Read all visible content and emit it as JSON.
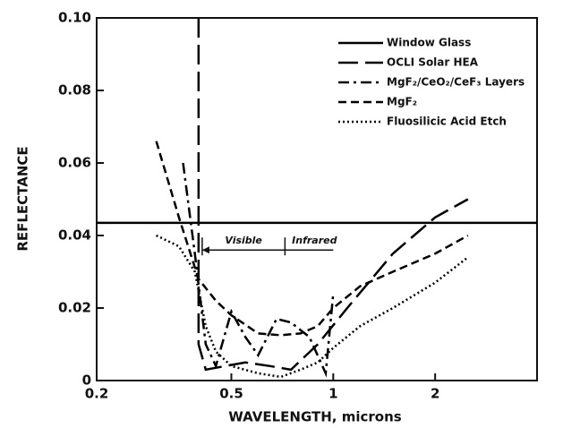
{
  "chart_data": {
    "type": "line",
    "xlabel": "WAVELENGTH, microns",
    "ylabel": "REFLECTANCE",
    "xscale": "log",
    "xlim": [
      0.2,
      4
    ],
    "xticks": [
      0.2,
      0.5,
      1,
      2
    ],
    "ylim": [
      0,
      0.1
    ],
    "yticks": [
      0,
      0.02,
      0.04,
      0.06,
      0.08,
      {
        "value": 0.1,
        "label": "0.10"
      }
    ],
    "legend": "upper right",
    "annotations": [
      "Visible",
      "Infrared"
    ],
    "series": [
      {
        "name": "Window Glass",
        "color": "#000000",
        "dash": "solid",
        "x": [
          0.2,
          4
        ],
        "values": [
          0.0435,
          0.0435
        ]
      },
      {
        "name": "OCLI Solar HEA",
        "color": "#000000",
        "dash": "long",
        "x": [
          0.4,
          0.4,
          0.42,
          0.48,
          0.55,
          0.65,
          0.75,
          0.9,
          1.1,
          1.5,
          2,
          2.5
        ],
        "values": [
          0.1,
          0.01,
          0.003,
          0.004,
          0.005,
          0.004,
          0.003,
          0.01,
          0.02,
          0.035,
          0.045,
          0.05
        ]
      },
      {
        "name": "MgF₂/CeO₂/CeF₃ Layers",
        "color": "#000000",
        "dash": "dashdot",
        "x": [
          0.36,
          0.39,
          0.42,
          0.45,
          0.5,
          0.55,
          0.6,
          0.68,
          0.75,
          0.85,
          0.95,
          1.0
        ],
        "values": [
          0.06,
          0.035,
          0.01,
          0.004,
          0.019,
          0.012,
          0.007,
          0.017,
          0.016,
          0.012,
          0.002,
          0.024
        ]
      },
      {
        "name": "MgF₂",
        "color": "#000000",
        "dash": "dash",
        "x": [
          0.3,
          0.35,
          0.4,
          0.45,
          0.5,
          0.6,
          0.7,
          0.8,
          0.9,
          1.0,
          1.2,
          1.5,
          2,
          2.5
        ],
        "values": [
          0.066,
          0.045,
          0.028,
          0.022,
          0.018,
          0.013,
          0.0125,
          0.013,
          0.015,
          0.02,
          0.026,
          0.03,
          0.035,
          0.04
        ]
      },
      {
        "name": "Fluosilicic Acid Etch",
        "color": "#000000",
        "dash": "dot",
        "x": [
          0.3,
          0.35,
          0.39,
          0.42,
          0.45,
          0.5,
          0.6,
          0.7,
          0.8,
          0.9,
          1.0,
          1.2,
          1.5,
          2,
          2.5
        ],
        "values": [
          0.04,
          0.037,
          0.03,
          0.015,
          0.008,
          0.004,
          0.002,
          0.001,
          0.003,
          0.005,
          0.009,
          0.015,
          0.02,
          0.027,
          0.034
        ]
      }
    ]
  }
}
